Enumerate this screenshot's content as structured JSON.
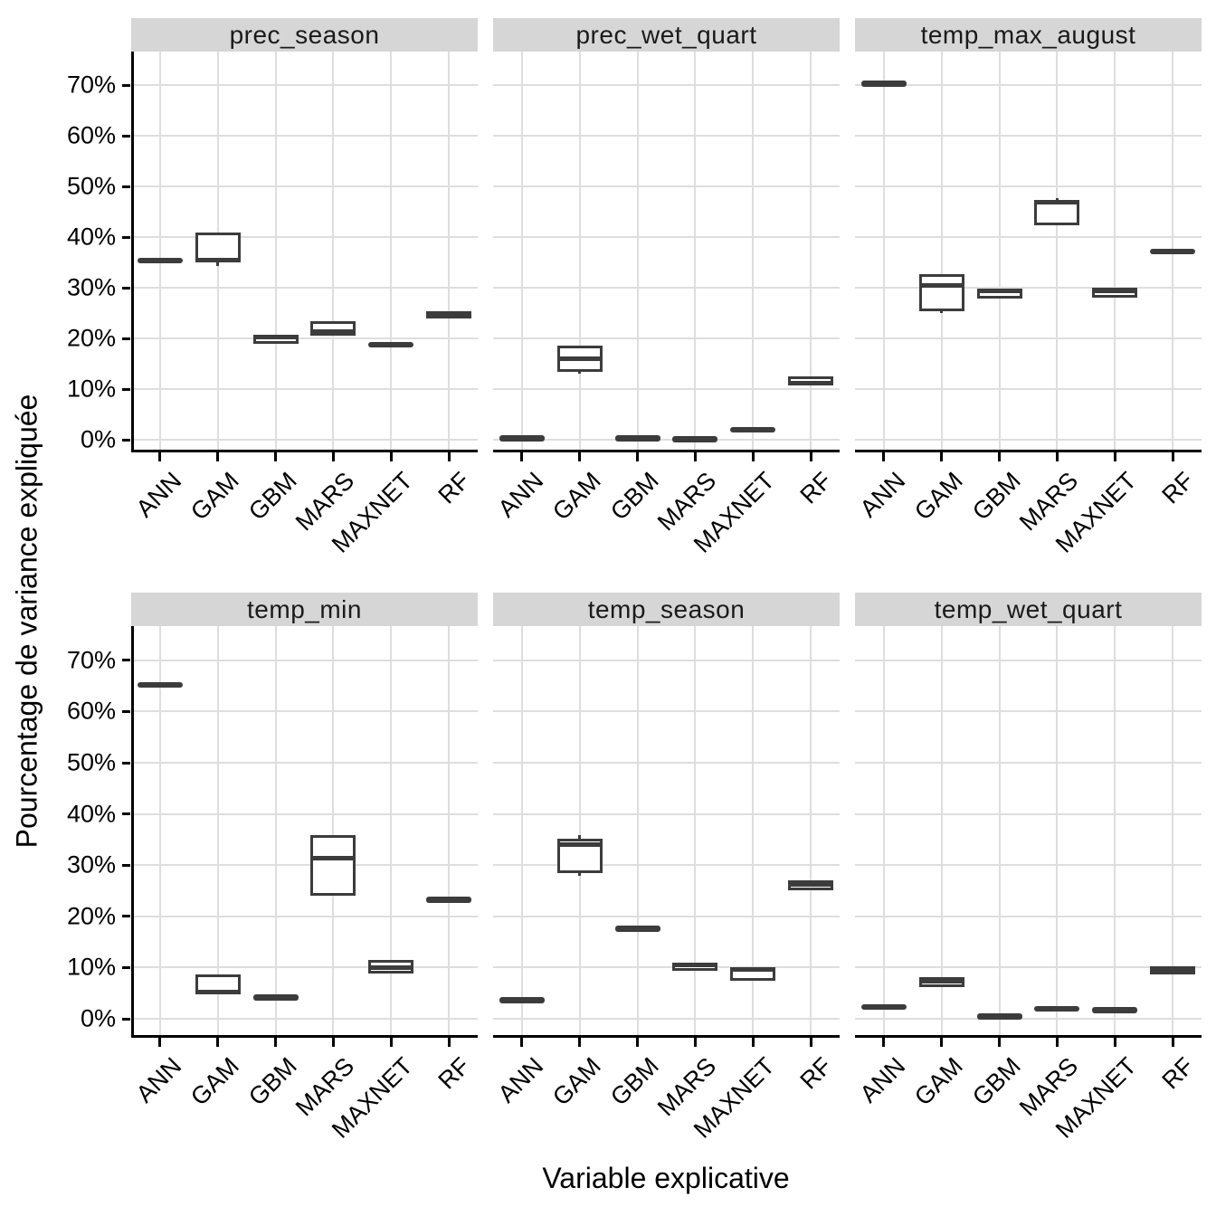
{
  "colors": {
    "box_stroke": "#3c3c3c",
    "strip_bg": "#d6d6d6",
    "grid": "#dedede",
    "axis": "#000000",
    "panel_bg": "#ffffff"
  },
  "y_axis": {
    "label": "Pourcentage de variance expliquée"
  },
  "x_axis": {
    "label": "Variable explicative"
  },
  "chart_data": {
    "type": "boxplot",
    "title": "",
    "xlabel": "Variable explicative",
    "ylabel": "Pourcentage de variance expliquée",
    "categories": [
      "ANN",
      "GAM",
      "GBM",
      "MARS",
      "MAXNET",
      "RF"
    ],
    "yticks": [
      0,
      10,
      20,
      30,
      40,
      50,
      60,
      70
    ],
    "ytick_suffix": "%",
    "ylim": [
      0,
      74
    ],
    "grid": "major",
    "legend": "none",
    "facets": [
      {
        "name": "prec_season",
        "boxes": [
          {
            "model": "ANN",
            "min": 35.1,
            "q1": 35.2,
            "med": 35.4,
            "q3": 35.6,
            "max": 35.7
          },
          {
            "model": "GAM",
            "min": 34.3,
            "q1": 35.0,
            "med": 35.5,
            "q3": 40.9,
            "max": 41.0
          },
          {
            "model": "GBM",
            "min": 18.9,
            "q1": 18.9,
            "med": 20.3,
            "q3": 20.8,
            "max": 20.8
          },
          {
            "model": "MARS",
            "min": 20.6,
            "q1": 20.6,
            "med": 21.4,
            "q3": 23.4,
            "max": 23.4
          },
          {
            "model": "MAXNET",
            "min": 18.8,
            "q1": 18.8,
            "med": 18.8,
            "q3": 18.8,
            "max": 18.8
          },
          {
            "model": "RF",
            "min": 23.9,
            "q1": 23.9,
            "med": 24.5,
            "q3": 25.3,
            "max": 25.3
          }
        ]
      },
      {
        "name": "prec_wet_quart",
        "boxes": [
          {
            "model": "ANN",
            "min": 0.3,
            "q1": 0.3,
            "med": 0.3,
            "q3": 0.3,
            "max": 0.3
          },
          {
            "model": "GAM",
            "min": 13.1,
            "q1": 13.4,
            "med": 16.0,
            "q3": 18.6,
            "max": 18.6
          },
          {
            "model": "GBM",
            "min": 0.3,
            "q1": 0.3,
            "med": 0.3,
            "q3": 0.3,
            "max": 0.3
          },
          {
            "model": "MARS",
            "min": 0.1,
            "q1": 0.1,
            "med": 0.1,
            "q3": 0.1,
            "max": 0.1
          },
          {
            "model": "MAXNET",
            "min": 2.0,
            "q1": 2.0,
            "med": 2.0,
            "q3": 2.0,
            "max": 2.0
          },
          {
            "model": "RF",
            "min": 10.9,
            "q1": 10.9,
            "med": 11.2,
            "q3": 12.5,
            "max": 12.5
          }
        ]
      },
      {
        "name": "temp_max_august",
        "boxes": [
          {
            "model": "ANN",
            "min": 70.3,
            "q1": 70.3,
            "med": 70.3,
            "q3": 70.3,
            "max": 70.3
          },
          {
            "model": "GAM",
            "min": 25.2,
            "q1": 25.4,
            "med": 30.5,
            "q3": 32.6,
            "max": 32.6
          },
          {
            "model": "GBM",
            "min": 27.8,
            "q1": 27.8,
            "med": 29.3,
            "q3": 29.8,
            "max": 29.8
          },
          {
            "model": "MARS",
            "min": 42.4,
            "q1": 42.4,
            "med": 46.9,
            "q3": 47.2,
            "max": 47.7
          },
          {
            "model": "MAXNET",
            "min": 28.1,
            "q1": 28.1,
            "med": 29.4,
            "q3": 30.0,
            "max": 30.0
          },
          {
            "model": "RF",
            "min": 36.8,
            "q1": 36.9,
            "med": 37.2,
            "q3": 37.5,
            "max": 37.5
          }
        ]
      },
      {
        "name": "temp_min",
        "boxes": [
          {
            "model": "ANN",
            "min": 65.2,
            "q1": 65.2,
            "med": 65.2,
            "q3": 65.2,
            "max": 65.2
          },
          {
            "model": "GAM",
            "min": 4.8,
            "q1": 4.8,
            "med": 5.3,
            "q3": 8.6,
            "max": 8.6
          },
          {
            "model": "GBM",
            "min": 4.2,
            "q1": 4.2,
            "med": 4.2,
            "q3": 4.2,
            "max": 4.2
          },
          {
            "model": "MARS",
            "min": 24.0,
            "q1": 24.0,
            "med": 31.3,
            "q3": 35.8,
            "max": 35.8
          },
          {
            "model": "MAXNET",
            "min": 8.8,
            "q1": 8.8,
            "med": 9.9,
            "q3": 11.4,
            "max": 11.4
          },
          {
            "model": "RF",
            "min": 23.3,
            "q1": 23.3,
            "med": 23.3,
            "q3": 23.3,
            "max": 23.3
          }
        ]
      },
      {
        "name": "temp_season",
        "boxes": [
          {
            "model": "ANN",
            "min": 3.7,
            "q1": 3.7,
            "med": 3.7,
            "q3": 3.7,
            "max": 3.7
          },
          {
            "model": "GAM",
            "min": 28.0,
            "q1": 28.4,
            "med": 34.0,
            "q3": 35.2,
            "max": 35.8
          },
          {
            "model": "GBM",
            "min": 17.6,
            "q1": 17.6,
            "med": 17.6,
            "q3": 17.6,
            "max": 17.6
          },
          {
            "model": "MARS",
            "min": 9.3,
            "q1": 9.3,
            "med": 10.5,
            "q3": 11.0,
            "max": 11.0
          },
          {
            "model": "MAXNET",
            "min": 7.4,
            "q1": 7.4,
            "med": 9.7,
            "q3": 10.1,
            "max": 10.1
          },
          {
            "model": "RF",
            "min": 24.9,
            "q1": 25.0,
            "med": 26.3,
            "q3": 27.0,
            "max": 27.0
          }
        ]
      },
      {
        "name": "temp_wet_quart",
        "boxes": [
          {
            "model": "ANN",
            "min": 2.3,
            "q1": 2.3,
            "med": 2.3,
            "q3": 2.3,
            "max": 2.3
          },
          {
            "model": "GAM",
            "min": 6.1,
            "q1": 6.1,
            "med": 7.4,
            "q3": 8.1,
            "max": 8.1
          },
          {
            "model": "GBM",
            "min": 0.5,
            "q1": 0.5,
            "med": 0.5,
            "q3": 0.5,
            "max": 0.5
          },
          {
            "model": "MARS",
            "min": 2.0,
            "q1": 2.0,
            "med": 2.0,
            "q3": 2.0,
            "max": 2.0
          },
          {
            "model": "MAXNET",
            "min": 1.7,
            "q1": 1.7,
            "med": 1.7,
            "q3": 1.7,
            "max": 1.7
          },
          {
            "model": "RF",
            "min": 8.7,
            "q1": 8.7,
            "med": 9.4,
            "q3": 10.2,
            "max": 10.2
          }
        ]
      }
    ]
  }
}
